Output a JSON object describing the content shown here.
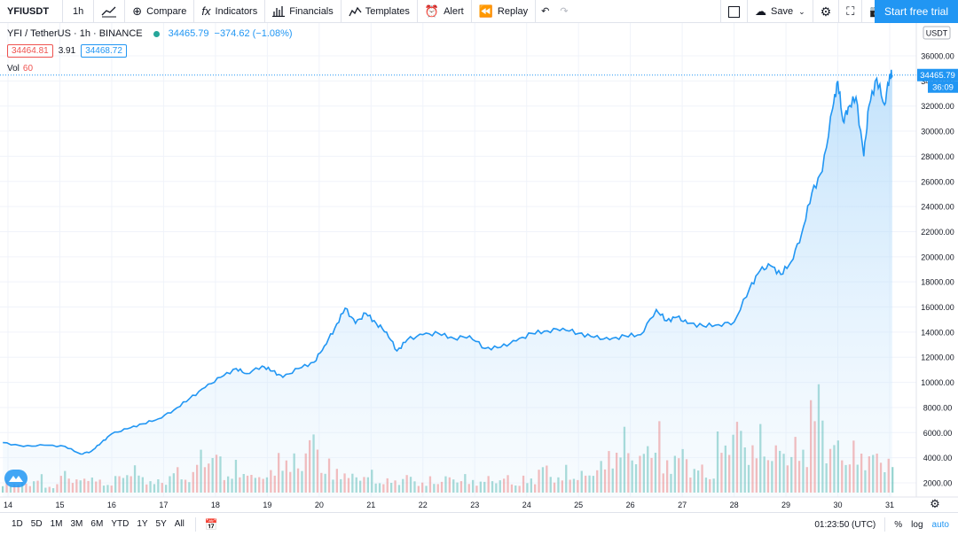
{
  "toolbar": {
    "symbol": "YFIUSDT",
    "interval": "1h",
    "compare": "Compare",
    "indicators": "Indicators",
    "financials": "Financials",
    "templates": "Templates",
    "alert": "Alert",
    "replay": "Replay",
    "save": "Save",
    "trial": "Start free trial"
  },
  "legend": {
    "title": "YFI / TetherUS · 1h · BINANCE",
    "price": "34465.79",
    "change": "−374.62 (−1.08%)",
    "bid": "34464.81",
    "spread": "3.91",
    "ask": "34468.72",
    "vol_label": "Vol",
    "vol_value": "60"
  },
  "axis": {
    "currency": "USDT",
    "last_price": "34465.79",
    "countdown": "36:09"
  },
  "bottom": {
    "ranges": [
      "1D",
      "5D",
      "1M",
      "3M",
      "6M",
      "YTD",
      "1Y",
      "5Y",
      "All"
    ],
    "time": "01:23:50 (UTC)",
    "percent": "%",
    "log": "log",
    "auto": "auto"
  },
  "colors": {
    "line": "#2196f3",
    "area_top": "#bbdefb",
    "vol_up": "#26a69a",
    "vol_down": "#ef5350",
    "accent": "#2196f3"
  },
  "chart_data": {
    "type": "area",
    "title": "YFI / TetherUS · 1h · BINANCE",
    "ylim": [
      1000,
      37000
    ],
    "yticks": [
      2000,
      4000,
      6000,
      8000,
      10000,
      12000,
      14000,
      16000,
      18000,
      20000,
      22000,
      24000,
      26000,
      28000,
      30000,
      32000,
      34000,
      36000
    ],
    "ytick_labels": [
      "2000.00",
      "4000.00",
      "6000.00",
      "8000.00",
      "10000.00",
      "12000.00",
      "14000.00",
      "16000.00",
      "18000.00",
      "20000.00",
      "22000.00",
      "24000.00",
      "26000.00",
      "28000.00",
      "30000.00",
      "32000.00",
      "34000.00",
      "36000.00"
    ],
    "xticks": [
      14,
      15,
      16,
      17,
      18,
      19,
      20,
      21,
      22,
      23,
      24,
      25,
      26,
      27,
      28,
      29,
      30,
      31
    ],
    "xtick_labels": [
      "14",
      "15",
      "16",
      "17",
      "18",
      "19",
      "20",
      "21",
      "22",
      "23",
      "24",
      "25",
      "26",
      "27",
      "28",
      "29",
      "30",
      "31"
    ],
    "x": [
      13.9,
      14.3,
      14.7,
      15.1,
      15.4,
      15.6,
      15.8,
      16.0,
      16.3,
      16.6,
      16.9,
      17.2,
      17.5,
      17.8,
      18.1,
      18.4,
      18.6,
      18.9,
      19.1,
      19.3,
      19.6,
      19.9,
      20.1,
      20.3,
      20.5,
      20.7,
      20.9,
      21.1,
      21.3,
      21.5,
      21.7,
      22.0,
      22.3,
      22.6,
      22.9,
      23.2,
      23.5,
      23.8,
      24.1,
      24.4,
      24.7,
      25.0,
      25.3,
      25.6,
      25.9,
      26.2,
      26.5,
      26.7,
      26.9,
      27.1,
      27.4,
      27.7,
      28.0,
      28.3,
      28.5,
      28.7,
      28.9,
      29.1,
      29.3,
      29.5,
      29.7,
      29.9,
      30.0,
      30.1,
      30.2,
      30.35,
      30.5,
      30.6,
      30.75,
      30.9,
      31.0,
      31.05
    ],
    "y": [
      5200,
      4900,
      5000,
      4900,
      4300,
      4500,
      5200,
      5900,
      6300,
      6700,
      7100,
      7800,
      8700,
      9600,
      10400,
      11100,
      10700,
      11300,
      10900,
      10400,
      11100,
      11600,
      12900,
      14300,
      15900,
      14700,
      15500,
      14700,
      14000,
      12500,
      13400,
      13800,
      13900,
      13500,
      13700,
      12700,
      12800,
      13300,
      13900,
      14100,
      14300,
      13900,
      13600,
      13400,
      13700,
      13800,
      15800,
      14900,
      15200,
      14700,
      14500,
      14600,
      14800,
      17500,
      18900,
      19300,
      18600,
      19600,
      21800,
      25100,
      26800,
      31800,
      34000,
      30800,
      31900,
      32700,
      28000,
      32000,
      34200,
      32100,
      34500,
      34466
    ],
    "volume": {
      "description_free": true,
      "heights": [
        0.12,
        0.1,
        0.16,
        0.08,
        0.22,
        0.14,
        0.2,
        0.11,
        0.17,
        0.26,
        0.15,
        0.12,
        0.23,
        0.19,
        0.43,
        0.39,
        0.21,
        0.28,
        0.17,
        0.22,
        0.4,
        0.34,
        0.56,
        0.31,
        0.24,
        0.18,
        0.2,
        0.15,
        0.13,
        0.18,
        0.12,
        0.14,
        0.16,
        0.17,
        0.13,
        0.15,
        0.16,
        0.12,
        0.15,
        0.28,
        0.18,
        0.24,
        0.2,
        0.3,
        0.45,
        0.58,
        0.38,
        0.63,
        0.35,
        0.42,
        0.28,
        0.25,
        0.54,
        0.71,
        0.52,
        0.6,
        0.45,
        0.5,
        0.48,
        1.0,
        0.53,
        0.49,
        0.45,
        0.41,
        0.37
      ],
      "up": [
        true,
        false,
        true,
        false,
        true,
        false,
        true,
        false,
        false,
        true,
        true,
        false,
        true,
        false,
        true,
        false,
        true,
        false,
        true,
        false,
        true,
        false,
        true,
        false,
        false,
        true,
        false,
        true,
        false,
        true,
        false,
        true,
        false,
        true,
        true,
        false,
        false,
        true,
        false,
        true,
        false,
        true,
        false,
        true,
        true,
        false,
        true,
        false,
        true,
        false,
        true,
        true,
        false,
        true,
        false,
        true,
        true,
        false,
        true,
        true,
        false,
        true,
        false,
        true,
        false
      ]
    }
  }
}
